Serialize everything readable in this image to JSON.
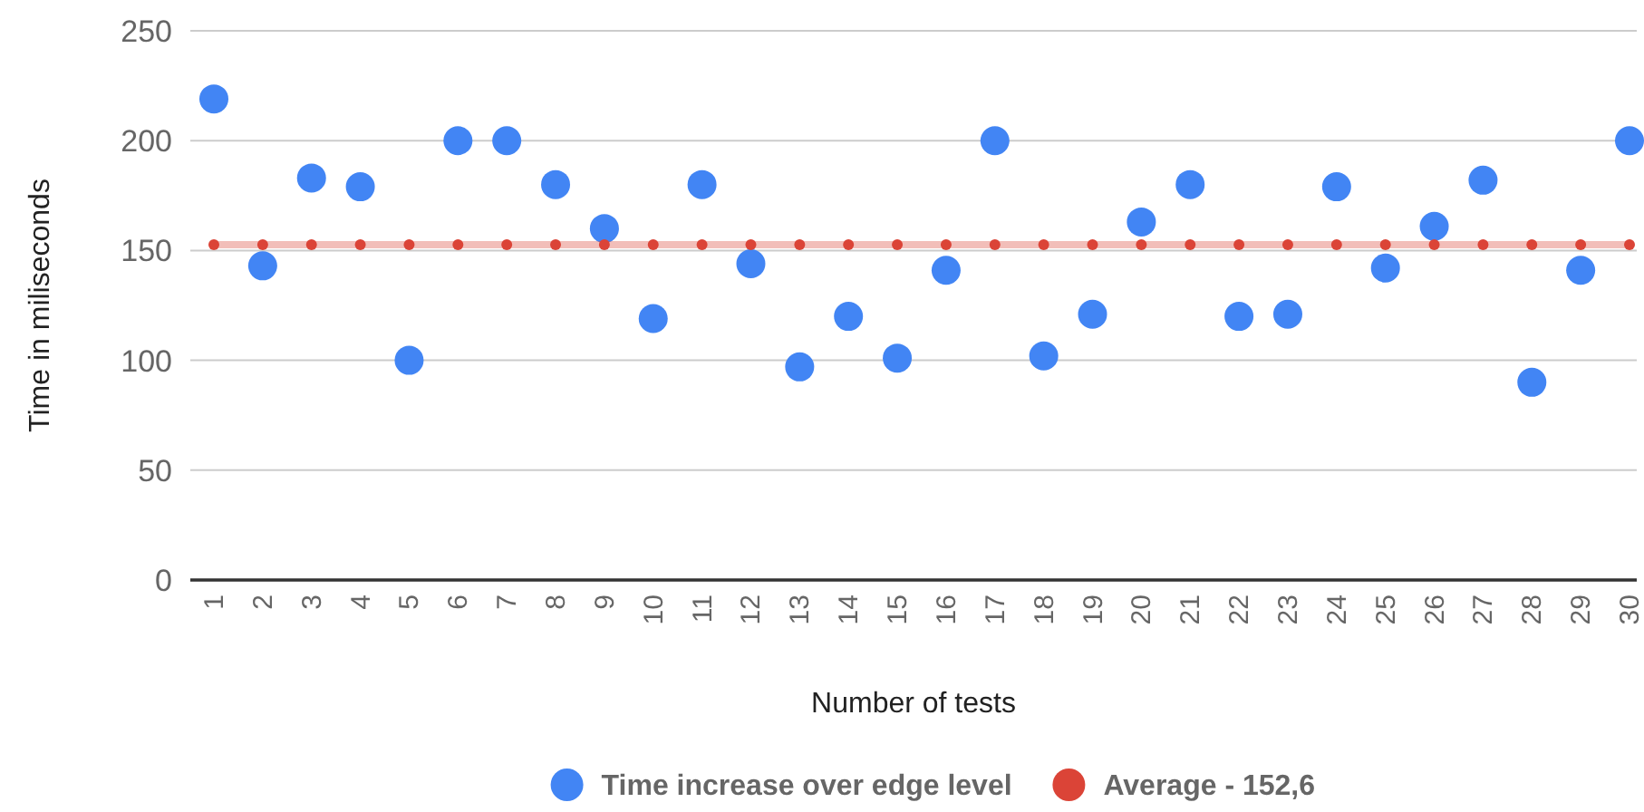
{
  "chart_data": {
    "type": "scatter",
    "xlabel": "Number of tests",
    "ylabel": "Time in miliseconds",
    "categories": [
      "1",
      "2",
      "3",
      "4",
      "5",
      "6",
      "7",
      "8",
      "9",
      "10",
      "11",
      "12",
      "13",
      "14",
      "15",
      "16",
      "17",
      "18",
      "19",
      "20",
      "21",
      "22",
      "23",
      "24",
      "25",
      "26",
      "27",
      "28",
      "29",
      "30"
    ],
    "series": [
      {
        "name": "Time increase over edge level",
        "color": "#4285f4",
        "values": [
          219,
          143,
          183,
          179,
          100,
          200,
          200,
          180,
          160,
          119,
          180,
          144,
          97,
          120,
          101,
          141,
          200,
          102,
          121,
          163,
          180,
          120,
          121,
          179,
          142,
          161,
          182,
          90,
          141,
          200
        ]
      },
      {
        "name": "Average - 152,6",
        "type": "line",
        "color": "#db4437",
        "values": [
          152.6,
          152.6,
          152.6,
          152.6,
          152.6,
          152.6,
          152.6,
          152.6,
          152.6,
          152.6,
          152.6,
          152.6,
          152.6,
          152.6,
          152.6,
          152.6,
          152.6,
          152.6,
          152.6,
          152.6,
          152.6,
          152.6,
          152.6,
          152.6,
          152.6,
          152.6,
          152.6,
          152.6,
          152.6,
          152.6
        ]
      }
    ],
    "ylim": [
      0,
      250
    ],
    "yticks": [
      0,
      50,
      100,
      150,
      200,
      250
    ],
    "grid": "y",
    "legend": "bottom",
    "marker": "circle"
  }
}
